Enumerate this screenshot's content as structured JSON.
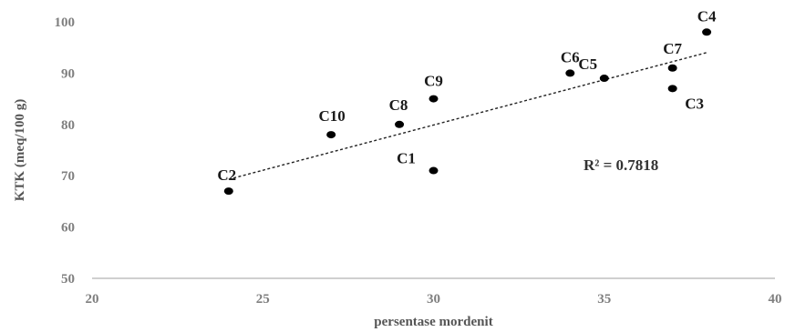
{
  "chart_data": {
    "type": "scatter",
    "xlabel": "persentase mordenit",
    "ylabel": "KTK (meq/100 g)",
    "xlim": [
      20,
      40
    ],
    "ylim": [
      50,
      100
    ],
    "xticks": [
      20,
      25,
      30,
      35,
      40
    ],
    "yticks": [
      50,
      60,
      70,
      80,
      90,
      100
    ],
    "grid": false,
    "points": [
      {
        "label": "C1",
        "x": 30,
        "y": 71
      },
      {
        "label": "C2",
        "x": 24,
        "y": 67
      },
      {
        "label": "C3",
        "x": 37,
        "y": 87
      },
      {
        "label": "C4",
        "x": 38,
        "y": 98
      },
      {
        "label": "C5",
        "x": 35,
        "y": 89
      },
      {
        "label": "C6",
        "x": 34,
        "y": 90
      },
      {
        "label": "C7",
        "x": 37,
        "y": 91
      },
      {
        "label": "C8",
        "x": 29,
        "y": 80
      },
      {
        "label": "C9",
        "x": 30,
        "y": 85
      },
      {
        "label": "C10",
        "x": 27,
        "y": 78
      }
    ],
    "trendline": {
      "type": "linear",
      "from": [
        24,
        69.3
      ],
      "to": [
        38,
        94
      ]
    },
    "annotation": "R² = 0.7818",
    "colors": {
      "points": "#000000",
      "trendline": "#222222",
      "axis": "#bfbfbf"
    }
  }
}
